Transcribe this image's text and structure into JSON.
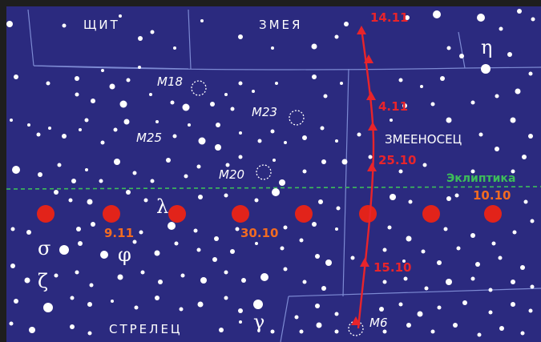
{
  "constellations": {
    "shield": "ЩИТ",
    "serpens": "ЗМЕЯ",
    "ophiuchus": "ЗМЕЕНОСЕЦ",
    "sagittarius": "СТРЕЛЕЦ"
  },
  "ecliptic_label": "Эклиптика",
  "messier": [
    "M18",
    "M23",
    "M25",
    "M20",
    "M6"
  ],
  "greek_letters": {
    "eta": "η",
    "lambda": "λ",
    "sigma": "σ",
    "phi": "φ",
    "zeta": "ζ",
    "gamma": "γ"
  },
  "track_dates": [
    "14.11",
    "4.11",
    "25.10",
    "15.10"
  ],
  "sun_dates": [
    "10.10",
    "30.10",
    "9.11"
  ],
  "colors": {
    "sky": "#2b2a7f",
    "boundary": "#7d8ad3",
    "track": "#e8242b",
    "sun_disc": "#e2231a",
    "sun_date": "#f26b21",
    "ecliptic": "#3dbd5a",
    "star": "#ffffff"
  }
}
